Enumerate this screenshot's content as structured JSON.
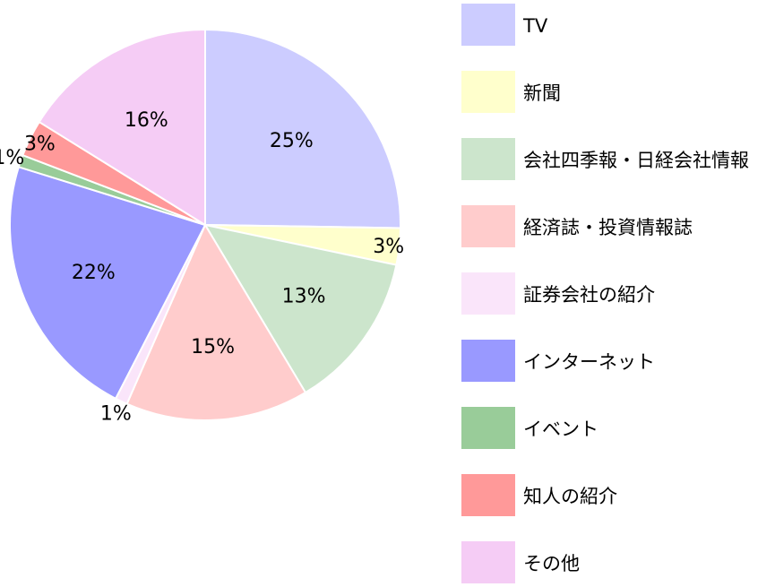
{
  "chart_data": {
    "type": "pie",
    "title": "",
    "legend_position": "right",
    "slices": [
      {
        "label": "TV",
        "value": 25,
        "display": "25%",
        "color": "#ccccff"
      },
      {
        "label": "新聞",
        "value": 3,
        "display": "3%",
        "color": "#ffffcc"
      },
      {
        "label": "会社四季報・日経会社情報",
        "value": 13,
        "display": "13%",
        "color": "#cce5cc"
      },
      {
        "label": "経済誌・投資情報誌",
        "value": 15,
        "display": "15%",
        "color": "#ffcccc"
      },
      {
        "label": "証券会社の紹介",
        "value": 1,
        "display": "1%",
        "color": "#fae5fa"
      },
      {
        "label": "インターネット",
        "value": 22,
        "display": "22%",
        "color": "#9999ff"
      },
      {
        "label": "イベント",
        "value": 1,
        "display": "1%",
        "color": "#99cc99"
      },
      {
        "label": "知人の紹介",
        "value": 3,
        "display": "3%",
        "color": "#ff9999"
      },
      {
        "label": "その他",
        "value": 16,
        "display": "16%",
        "color": "#f5ccf5"
      }
    ]
  }
}
